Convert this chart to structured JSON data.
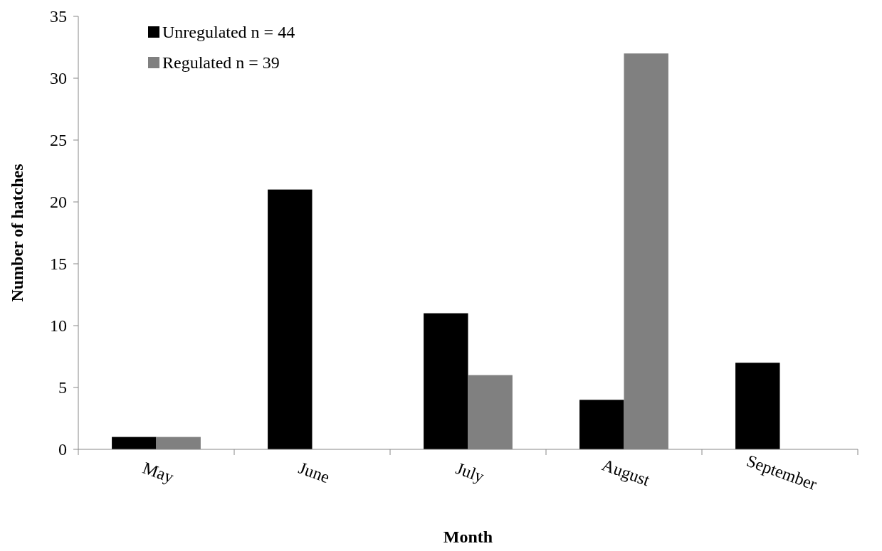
{
  "chart_data": {
    "type": "bar",
    "xlabel": "Month",
    "ylabel": "Number of hatches",
    "categories": [
      "May",
      "June",
      "July",
      "August",
      "September"
    ],
    "series": [
      {
        "name": "Unregulated n = 44",
        "color": "#000000",
        "values": [
          1,
          21,
          11,
          4,
          7
        ]
      },
      {
        "name": "Regulated n = 39",
        "color": "#808080",
        "values": [
          1,
          0,
          6,
          32,
          0
        ]
      }
    ],
    "ylim": [
      0,
      35
    ],
    "yticks": [
      0,
      5,
      10,
      15,
      20,
      25,
      30,
      35
    ],
    "grid": false,
    "legend": "top left"
  }
}
